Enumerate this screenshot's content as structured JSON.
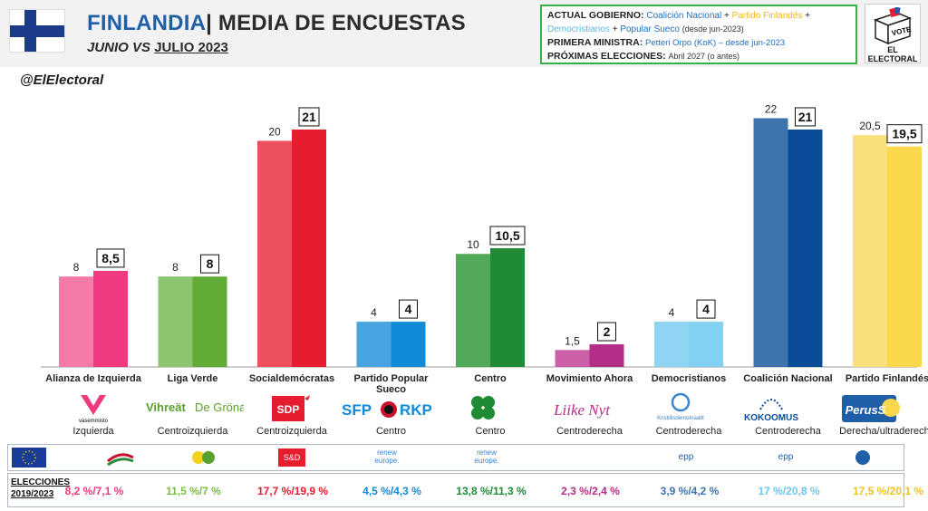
{
  "header": {
    "country": "FINLANDIA",
    "separator": "| MEDIA DE ENCUESTAS",
    "sub_a": "JUNIO VS ",
    "sub_b": "JULIO 2023",
    "gov_label": "ACTUAL GOBIERNO:",
    "gov_p1": "Coalición Nacional",
    "gov_plus": "+",
    "gov_p2": "Partido Finlandés",
    "gov_p3": "Democristianos",
    "gov_p4": "Popular Sueco",
    "gov_since": "(desde jun-2023)",
    "pm_label": "PRIMERA MINISTRA:",
    "pm_value": "Petteri Orpo (KoK) – desde jun-2023",
    "next_label": "PRÓXIMAS ELECCIONES:",
    "next_value": "Abril 2027 (o antes)",
    "logo_vote": "VOTE",
    "logo_text": "EL ELECTORAL"
  },
  "handle": "@ElElectoral",
  "chart_data": {
    "type": "bar",
    "categories": [
      "Alianza de Izquierda",
      "Liga Verde",
      "Socialdemócratas",
      "Partido Popular Sueco",
      "Centro",
      "Movimiento Ahora",
      "Democristianos",
      "Coalición Nacional",
      "Partido Finlandés"
    ],
    "series": [
      {
        "name": "",
        "values": [
          8,
          8,
          20,
          4,
          10,
          1.5,
          4,
          22,
          20.5
        ]
      },
      {
        "name": "",
        "values": [
          8.5,
          8,
          21,
          4,
          10.5,
          2,
          4,
          21,
          19.5
        ]
      }
    ],
    "labels_prev": [
      "8",
      "8",
      "20",
      "4",
      "10",
      "1,5",
      "4",
      "22",
      "20,5"
    ],
    "labels_curr": [
      "8,5",
      "8",
      "21",
      "4",
      "10,5",
      "2",
      "4",
      "21",
      "19,5"
    ],
    "colors_prev": [
      "#f47aa8",
      "#8cc570",
      "#ec505e",
      "#47a4e0",
      "#52a95a",
      "#cc60a8",
      "#8fd4f2",
      "#3f73ad",
      "#fae07a"
    ],
    "colors_curr": [
      "#f0397e",
      "#62ab36",
      "#e61c2f",
      "#118ad8",
      "#1f8b35",
      "#b42e87",
      "#82d1f3",
      "#0a4c97",
      "#fad84c"
    ],
    "ylim": [
      0,
      23
    ],
    "grid": false
  },
  "ideologies": [
    "Izquierda",
    "Centroizquierda",
    "Centroizquierda",
    "Centro",
    "Centro",
    "Centroderecha",
    "Centroderecha",
    "Centroderecha",
    "Derecha/ultraderecha"
  ],
  "party_logos": {
    "vas": "vasemmisto",
    "vihr_a": "Vihreät",
    "vihr_b": "De Gröna",
    "sdp": "SDP",
    "sfp": "SFP",
    "rkp": "RKP",
    "liik": "Liike Nyt",
    "kd": "Kristillisdemokraatit",
    "kok": "KOKOOMUS",
    "ps": "PerusS"
  },
  "eu_groups": {
    "sd": "S&D",
    "renew1": "renew europe.",
    "renew2": "renew europe.",
    "epp1": "epp",
    "epp2": "epp"
  },
  "elections": {
    "title_line1": "ELECCIONES",
    "title_line2": "2019/2023",
    "values": [
      "8,2 %/7,1 %",
      "11,5 %/7 %",
      "17,7 %/19,9 %",
      "4,5 %/4,3 %",
      "13,8 %/11,3 %",
      "2,3 %/2,4 %",
      "3,9 %/4,2 %",
      "17 %/20,8 %",
      "17,5 %/20,1 %"
    ],
    "colors": [
      "#f0397e",
      "#7dbb4a",
      "#e61c2f",
      "#118ad8",
      "#1f8b35",
      "#b42e87",
      "#3f73ad",
      "#6fc6ef",
      "#f0c220"
    ]
  }
}
